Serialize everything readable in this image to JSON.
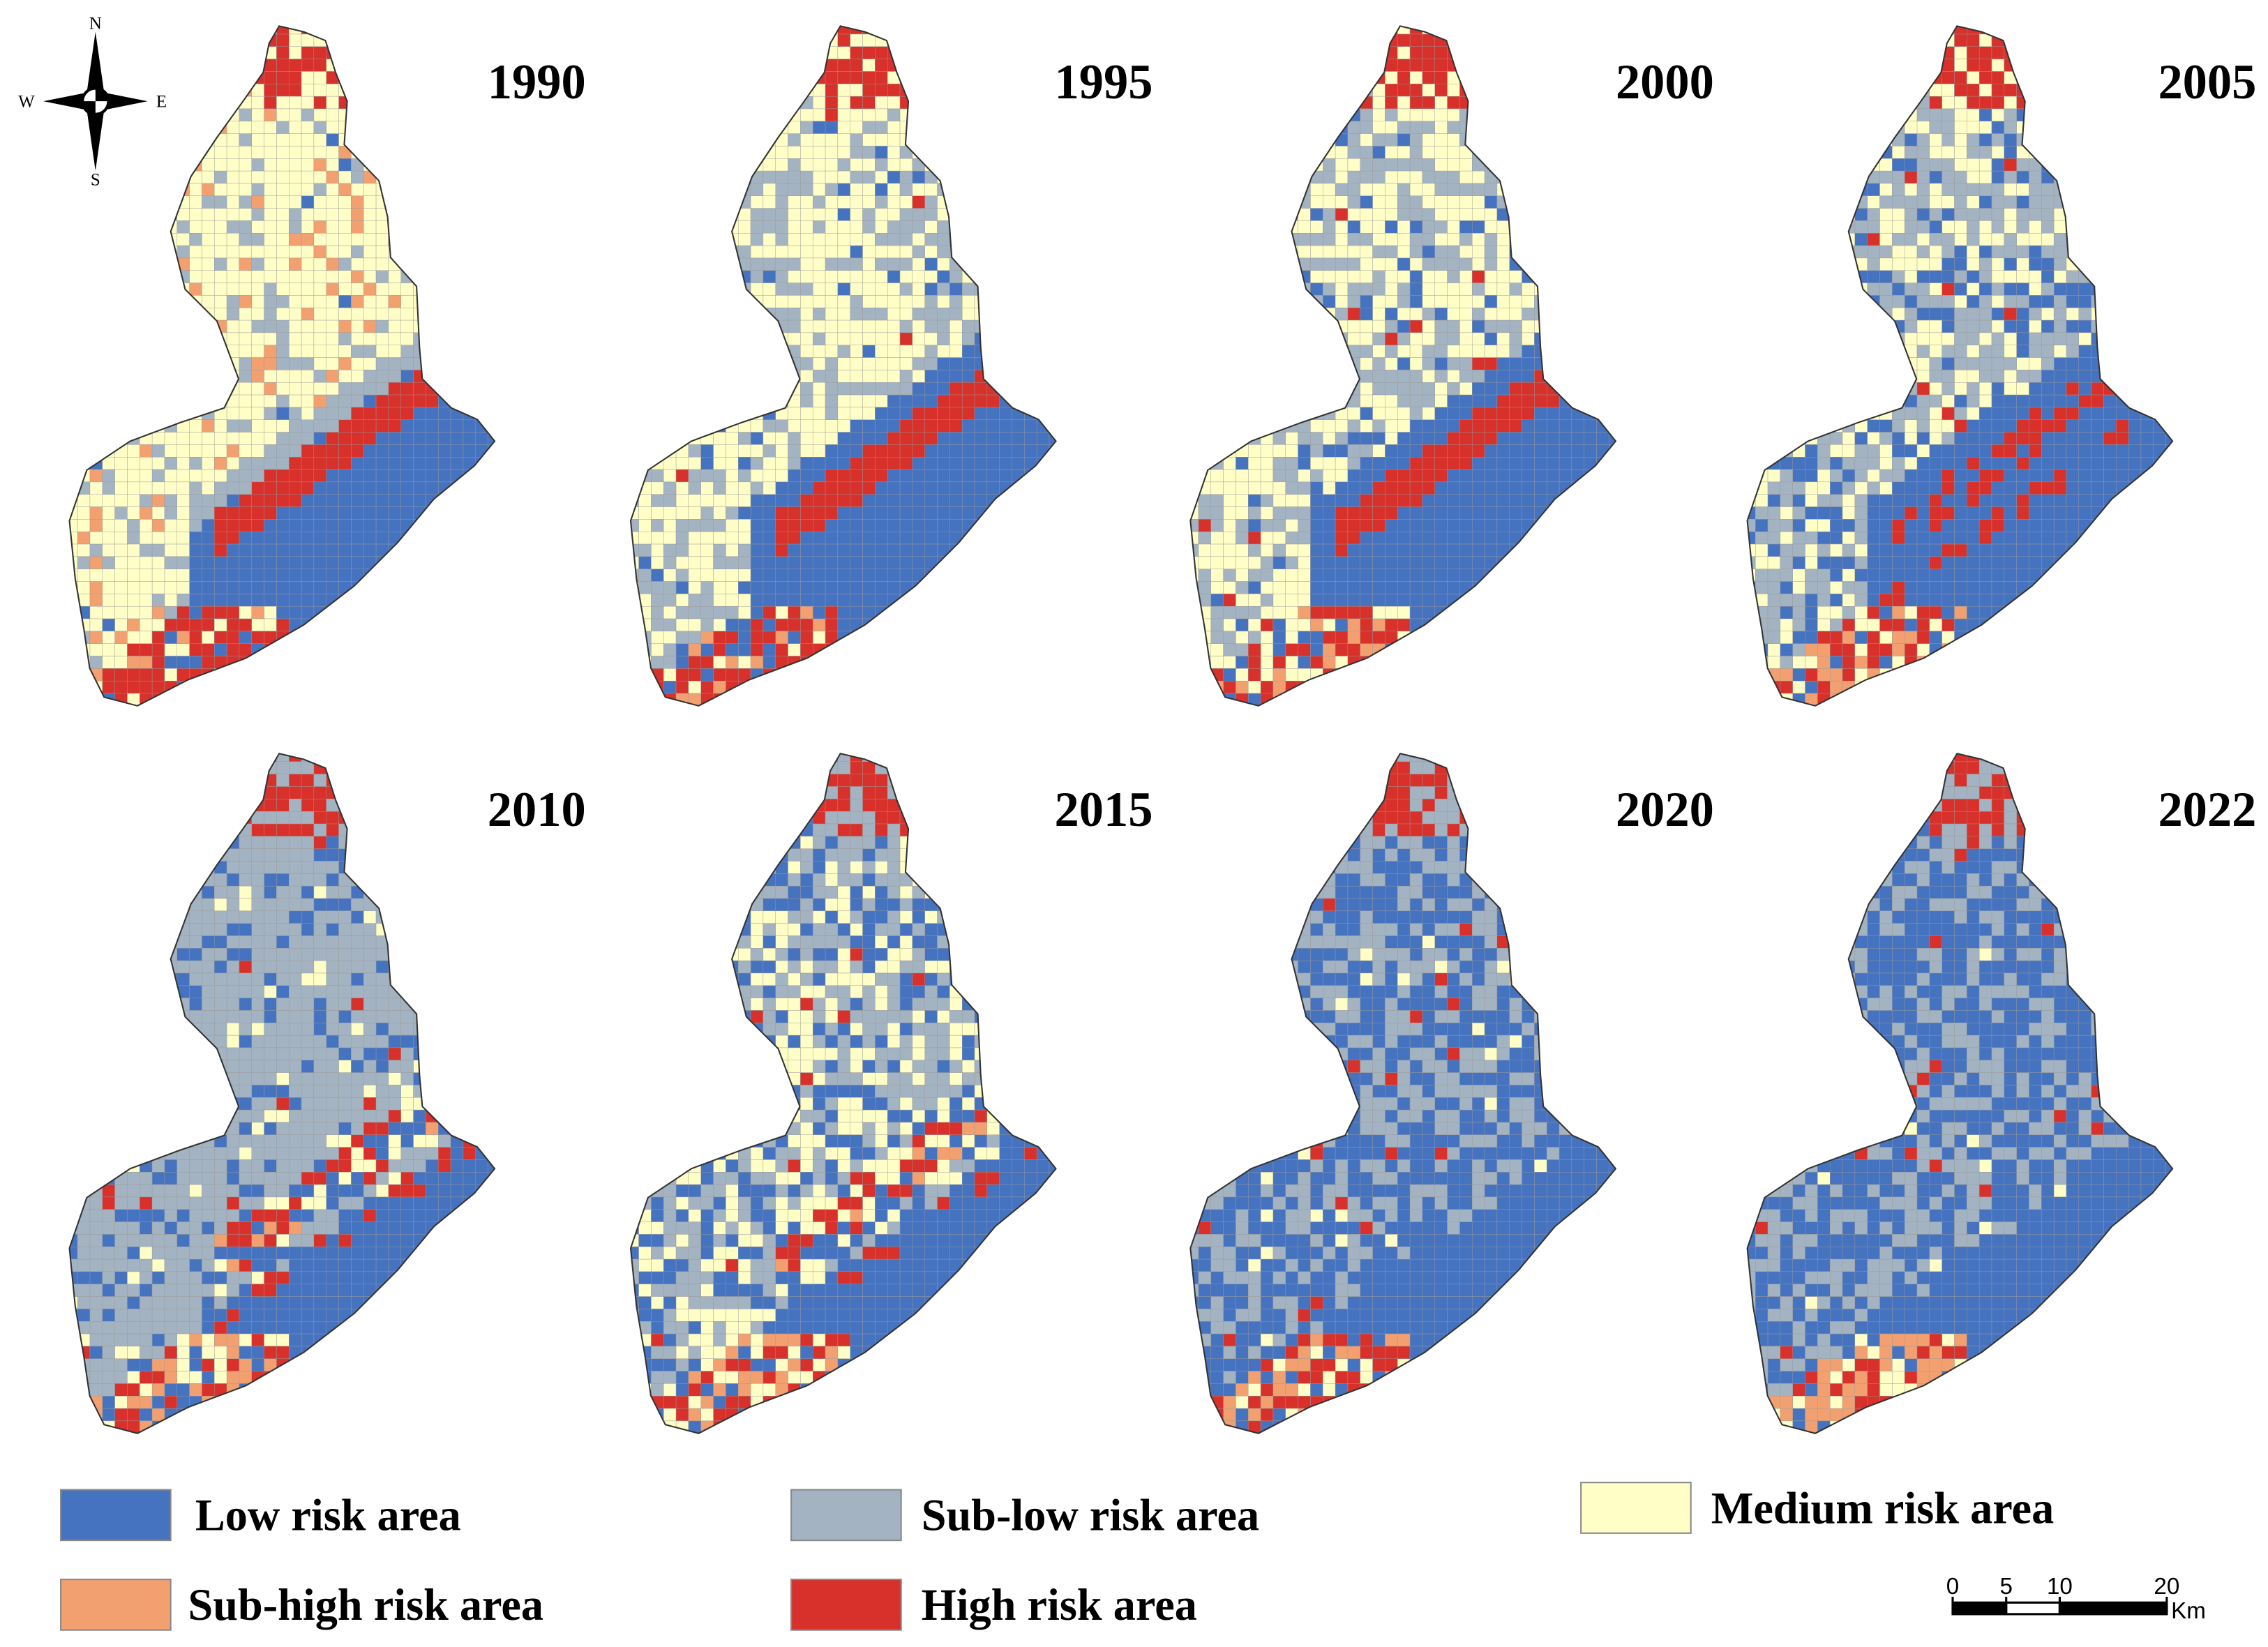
{
  "panels": [
    {
      "year": "1990"
    },
    {
      "year": "1995"
    },
    {
      "year": "2000"
    },
    {
      "year": "2005"
    },
    {
      "year": "2010"
    },
    {
      "year": "2015"
    },
    {
      "year": "2020"
    },
    {
      "year": "2022"
    }
  ],
  "legend": [
    {
      "label": "Low risk area",
      "color": "#4673c0"
    },
    {
      "label": "Sub-low risk area",
      "color": "#a3b3c1"
    },
    {
      "label": "Medium risk area",
      "color": "#fffec6"
    },
    {
      "label": "Sub-high risk area",
      "color": "#f3a070"
    },
    {
      "label": "High risk area",
      "color": "#d8302a"
    }
  ],
  "compass": {
    "north": "N",
    "south": "S",
    "east": "E",
    "west": "W"
  },
  "scale_bar": {
    "ticks": [
      0,
      5,
      10,
      20
    ],
    "unit": "Km"
  }
}
